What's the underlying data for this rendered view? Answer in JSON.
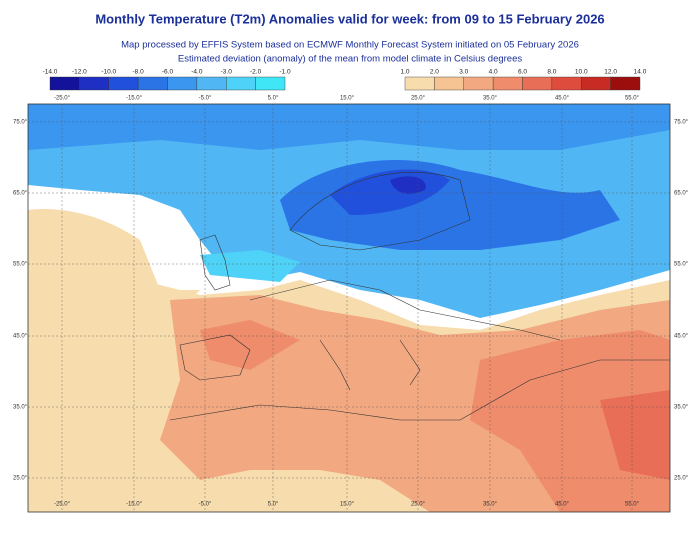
{
  "header": {
    "title": "Monthly Temperature (T2m) Anomalies valid for week: from 09 to 15 February 2026",
    "subtitles": [
      "Map processed by EFFIS System based on ECMWF Monthly Forecast System initiated on 05 February 2026",
      "Estimated deviation (anomaly) of the mean from model climate in Celsius degrees"
    ]
  },
  "legend": {
    "cold": {
      "labels": [
        "-14.0",
        "-12.0",
        "-10.0",
        "-8.0",
        "-6.0",
        "-4.0",
        "-3.0",
        "-2.0",
        "-1.0"
      ],
      "colors": [
        "#12129a",
        "#1f2fc4",
        "#2150dc",
        "#2a74e6",
        "#3a96ef",
        "#50b6f4",
        "#4fd2f7",
        "#3fe6f5"
      ]
    },
    "warm": {
      "labels": [
        "1.0",
        "2.0",
        "3.0",
        "4.0",
        "6.0",
        "8.0",
        "10.0",
        "12.0",
        "14.0"
      ],
      "colors": [
        "#f7dcae",
        "#f5c492",
        "#f2a880",
        "#ee8c6c",
        "#e86e57",
        "#de4c3e",
        "#c82a24",
        "#9c0e0e"
      ]
    }
  },
  "map": {
    "lon_labels": [
      "-25.0°",
      "-15.0°",
      "-5.0°",
      "5.0°",
      "15.0°",
      "25.0°",
      "35.0°",
      "45.0°",
      "55.0°"
    ],
    "lat_labels": [
      "75.0°",
      "65.0°",
      "55.0°",
      "45.0°",
      "35.0°",
      "25.0°"
    ]
  }
}
